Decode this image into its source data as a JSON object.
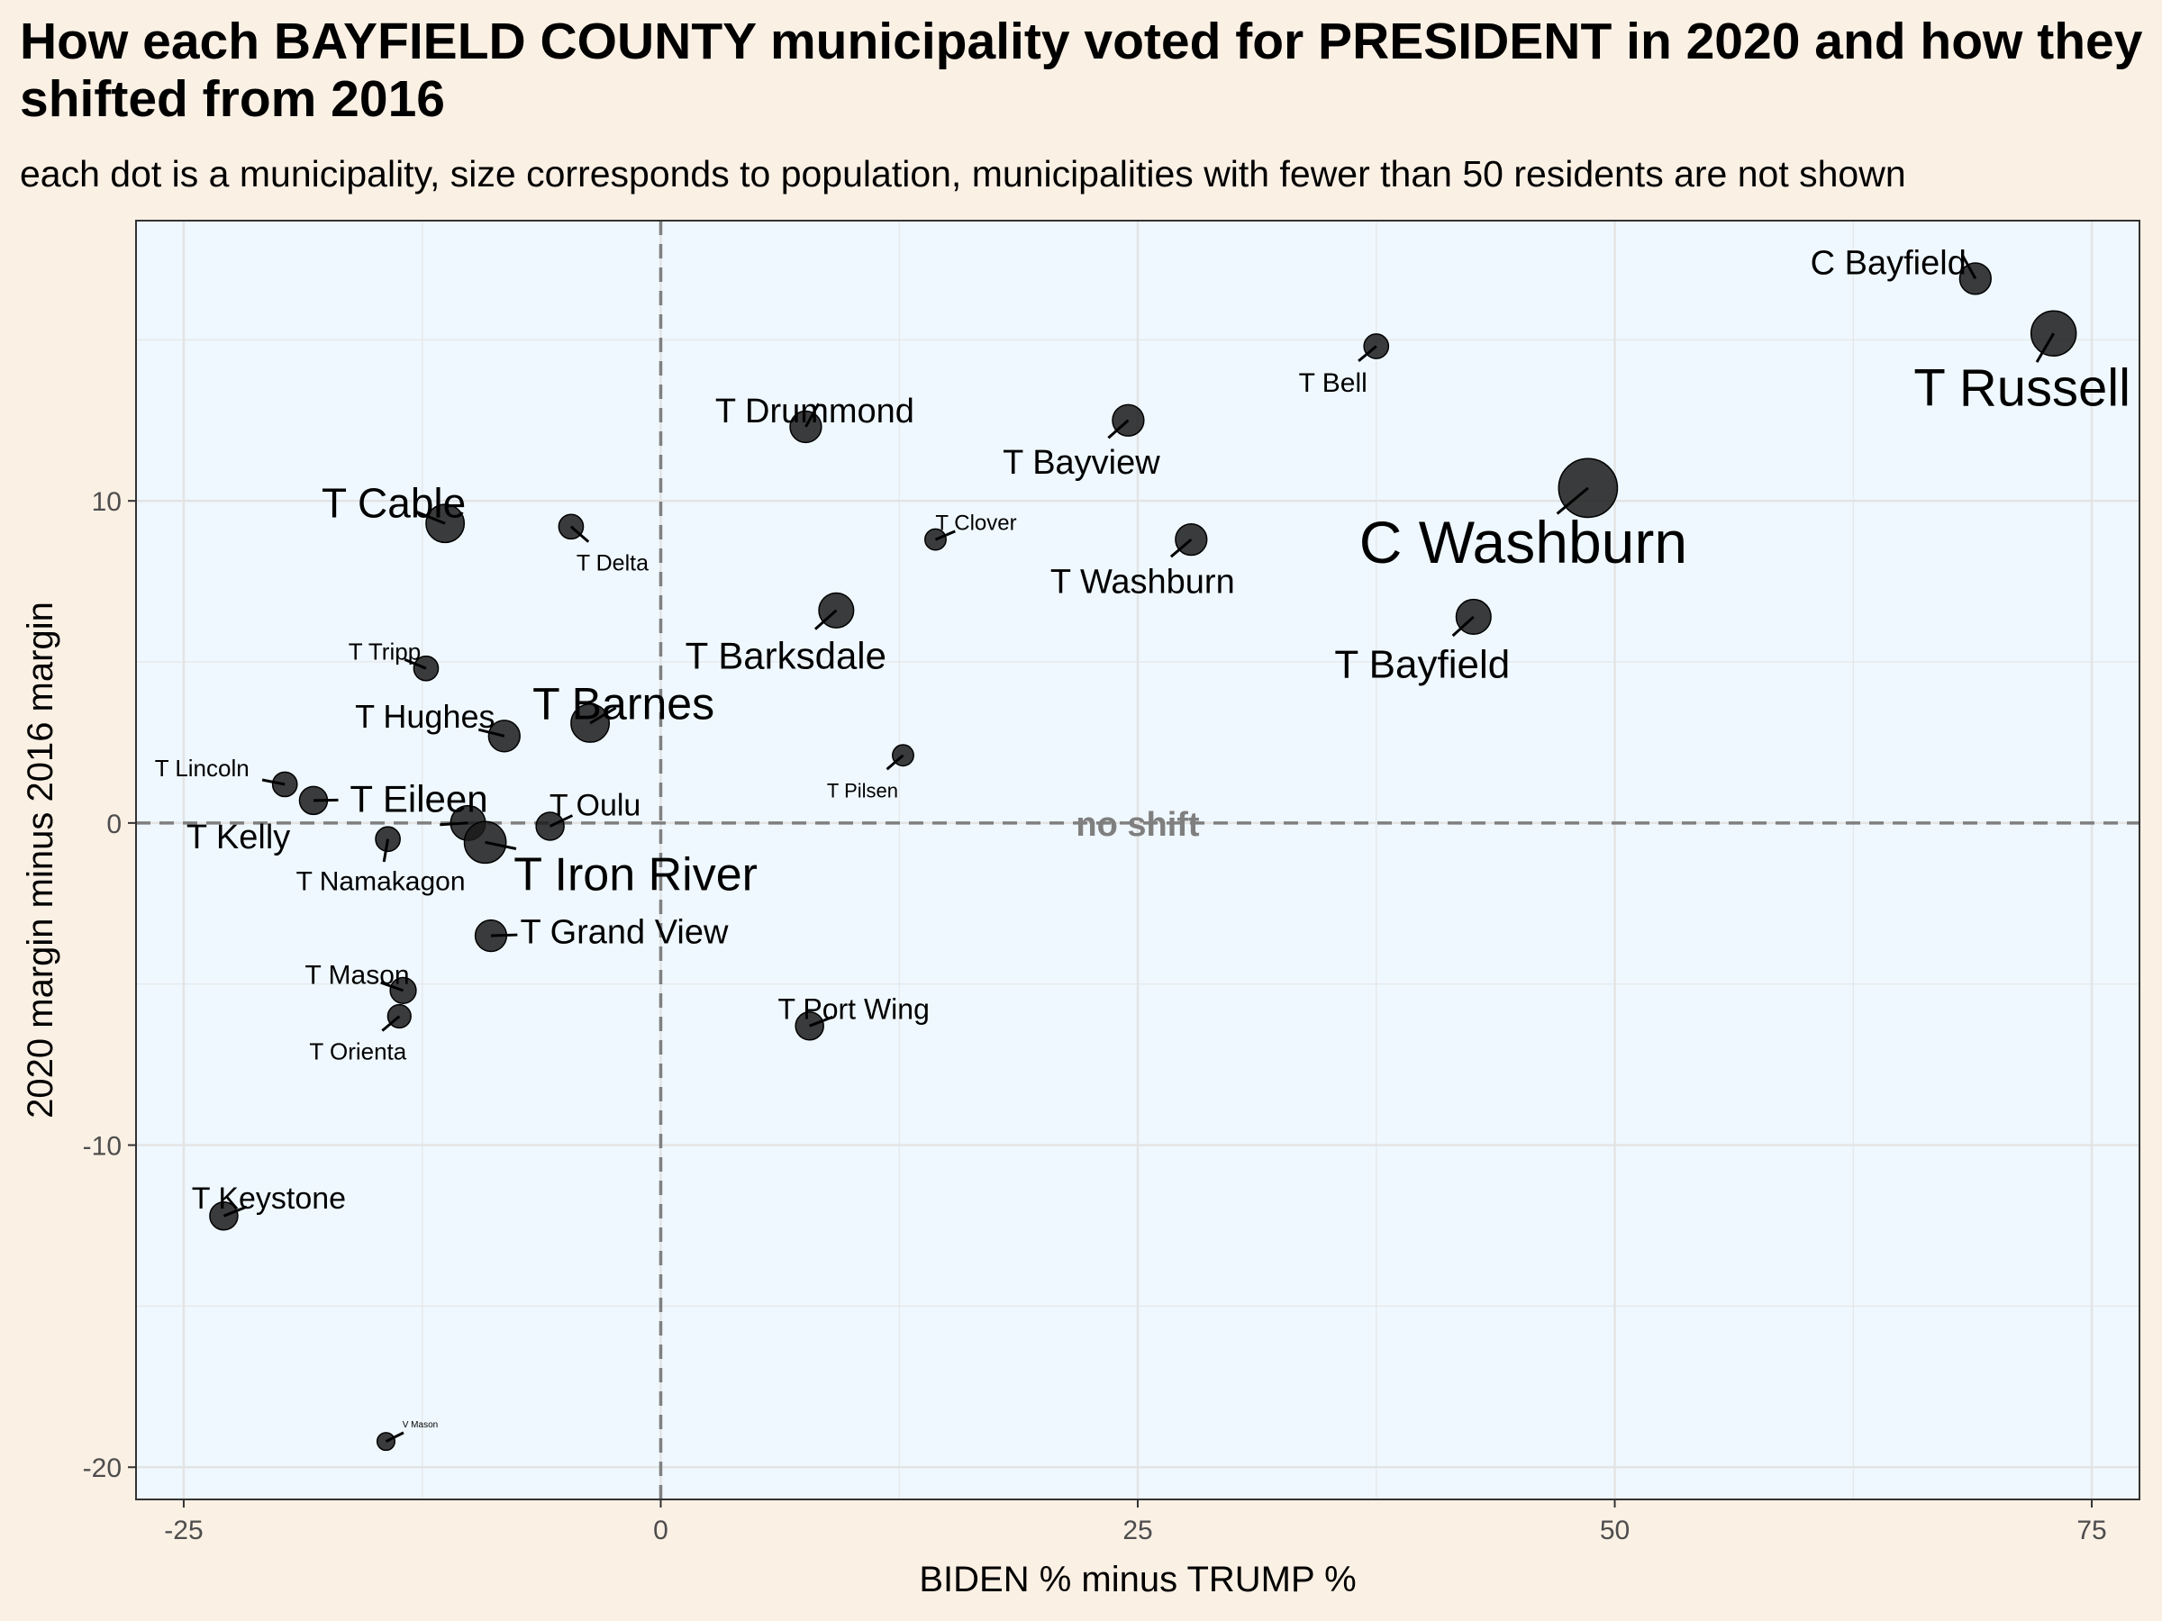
{
  "title": "How each BAYFIELD COUNTY municipality voted for PRESIDENT in 2020 and how they shifted from 2016",
  "subtitle": "each dot is a municipality, size corresponds to population, municipalities with fewer than 50 residents are not shown",
  "chart_data": {
    "type": "scatter",
    "title": "How each BAYFIELD COUNTY municipality voted for PRESIDENT in 2020 and how they shifted from 2016",
    "subtitle": "each dot is a municipality, size corresponds to population, municipalities with fewer than 50 residents are not shown",
    "xlabel": "BIDEN % minus TRUMP %",
    "ylabel": "2020 margin minus 2016 margin",
    "xlim": [
      -27.5,
      77.5
    ],
    "ylim": [
      -21,
      18.7
    ],
    "xticks": [
      -25,
      0,
      25,
      50,
      75
    ],
    "xtick_labels": [
      "-25",
      "0",
      "25",
      "50",
      "75"
    ],
    "yticks": [
      -20,
      -10,
      0,
      10
    ],
    "ytick_labels": [
      "-20",
      "-10",
      "0",
      "10"
    ],
    "grid": true,
    "reference_lines": {
      "x": 0,
      "y": 0
    },
    "annotation": "no shift",
    "colors": {
      "point": "#1a1a1a",
      "panel": "#eff8ff",
      "background": "#fbf0e4",
      "reference": "#7f7f7f"
    },
    "points": [
      {
        "name": "C Bayfield",
        "x": 68.9,
        "y": 16.9,
        "size": 3
      },
      {
        "name": "T Russell",
        "x": 73,
        "y": 15.2,
        "size": 5
      },
      {
        "name": "T Bell",
        "x": 37.5,
        "y": 14.8,
        "size": 2
      },
      {
        "name": "T Drummond",
        "x": 7.6,
        "y": 12.3,
        "size": 3
      },
      {
        "name": "T Bayview",
        "x": 24.5,
        "y": 12.5,
        "size": 3
      },
      {
        "name": "C Washburn",
        "x": 48.6,
        "y": 10.4,
        "size": 7
      },
      {
        "name": "T Cable",
        "x": -11.3,
        "y": 9.3,
        "size": 4
      },
      {
        "name": "T Delta",
        "x": -4.7,
        "y": 9.2,
        "size": 2
      },
      {
        "name": "T Clover",
        "x": 14.4,
        "y": 8.8,
        "size": 1.5
      },
      {
        "name": "T Washburn",
        "x": 27.8,
        "y": 8.8,
        "size": 3
      },
      {
        "name": "T Barksdale",
        "x": 9.2,
        "y": 6.6,
        "size": 3.5
      },
      {
        "name": "T Bayfield",
        "x": 42.6,
        "y": 6.4,
        "size": 3.5
      },
      {
        "name": "T Tripp",
        "x": -12.3,
        "y": 4.8,
        "size": 2
      },
      {
        "name": "T Barnes",
        "x": -3.7,
        "y": 3.1,
        "size": 4
      },
      {
        "name": "T Hughes",
        "x": -8.2,
        "y": 2.7,
        "size": 3
      },
      {
        "name": "T Pilsen",
        "x": 12.7,
        "y": 2.1,
        "size": 1.5
      },
      {
        "name": "T Lincoln",
        "x": -19.7,
        "y": 1.2,
        "size": 2
      },
      {
        "name": "T Eileen",
        "x": -18.2,
        "y": 0.7,
        "size": 2.5
      },
      {
        "name": "T Oulu",
        "x": -5.8,
        "y": -0.1,
        "size": 2.5
      },
      {
        "name": "T Kelly",
        "x": -10.1,
        "y": 0,
        "size": 3.5
      },
      {
        "name": "T Namakagon",
        "x": -14.3,
        "y": -0.5,
        "size": 2
      },
      {
        "name": "T Iron River",
        "x": -9.2,
        "y": -0.6,
        "size": 4.5
      },
      {
        "name": "T Grand View",
        "x": -8.9,
        "y": -3.5,
        "size": 3
      },
      {
        "name": "T Mason",
        "x": -13.5,
        "y": -5.2,
        "size": 2.2
      },
      {
        "name": "T Orienta",
        "x": -13.7,
        "y": -6,
        "size": 1.8
      },
      {
        "name": "T Port Wing",
        "x": 7.8,
        "y": -6.3,
        "size": 2.5
      },
      {
        "name": "T Keystone",
        "x": -22.9,
        "y": -12.2,
        "size": 2.5
      },
      {
        "name": "V Mason",
        "x": -14.4,
        "y": -19.2,
        "size": 1
      }
    ]
  }
}
